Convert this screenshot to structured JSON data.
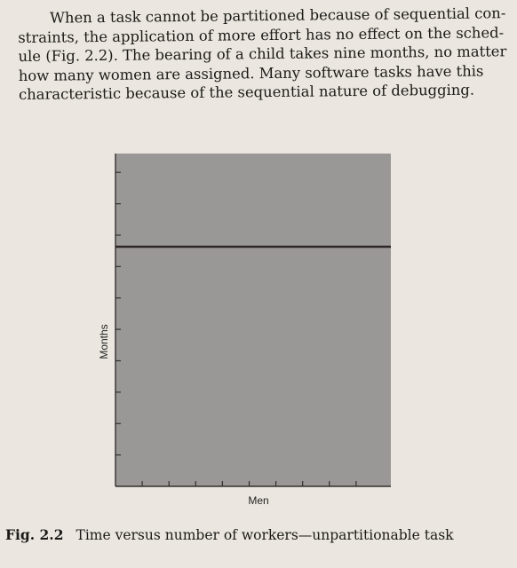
{
  "paragraph": {
    "lines": [
      "When a task cannot be partitioned because of sequential con-",
      "straints, the application of more effort has no effect on the sched-",
      "ule (Fig. 2.2). The bearing of a child takes nine months, no matter",
      "how many women are assigned. Many software tasks have this",
      "characteristic because of the sequential nature of debugging."
    ]
  },
  "chart_data": {
    "type": "line",
    "xlabel": "Men",
    "ylabel": "Months",
    "x_ticks": 9,
    "y_ticks": 10,
    "series": [
      {
        "x": [
          0,
          1
        ],
        "y": [
          0.72,
          0.72
        ]
      }
    ],
    "xlim": [
      0,
      1
    ],
    "ylim": [
      0,
      1
    ],
    "colors": {
      "plot_bg": "#9a9897",
      "line": "#2e2624",
      "axis": "#333030"
    }
  },
  "caption": {
    "number": "Fig. 2.2",
    "text": "Time versus number of workers—unpartitionable task"
  }
}
